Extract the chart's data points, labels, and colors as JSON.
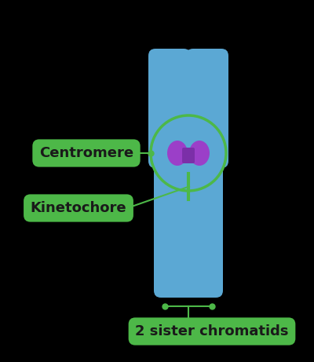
{
  "bg_color": "#000000",
  "chromatid_color": "#5ba8d4",
  "chromatid_dark": "#3a8ab5",
  "tip_color": "#4a90c4",
  "centromere_color": "#9b3fc8",
  "kinetochore_color": "#7b2fa8",
  "circle_color": "#4db848",
  "label_bg": "#4db848",
  "label_text_color": "#1a1a1a",
  "line_color": "#4db848",
  "centromere_label": "Centromere",
  "kinetochore_label": "Kinetochore",
  "sister_label": "2 sister chromatids",
  "label_fontsize": 13,
  "label_fontweight": "bold"
}
